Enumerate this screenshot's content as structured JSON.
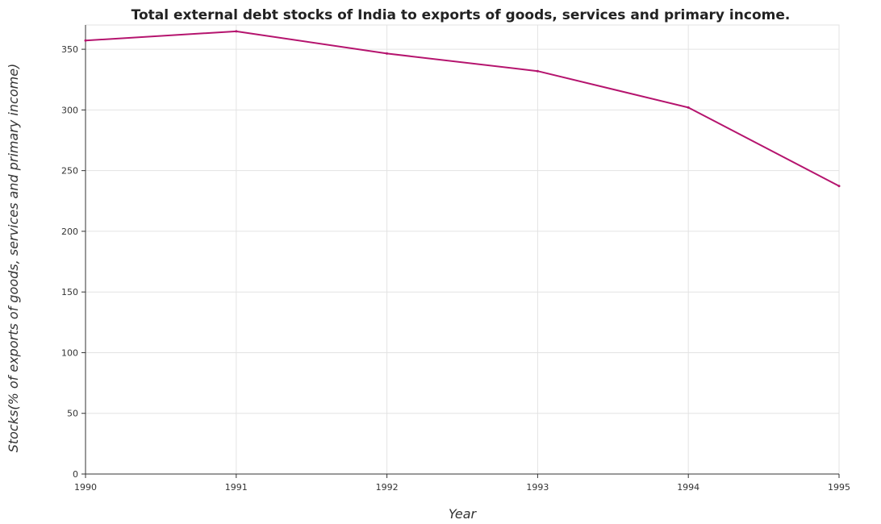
{
  "chart_data": {
    "type": "line",
    "title": "Total external debt stocks of India to exports of goods, services and primary income.",
    "xlabel": "Year",
    "ylabel": "Stocks(% of exports of goods, services and primary income)",
    "categories": [
      "1990",
      "1991",
      "1992",
      "1993",
      "1994",
      "1995"
    ],
    "series": [
      {
        "values": [
          357.2,
          364.8,
          346.5,
          332.0,
          302.0,
          237.3
        ],
        "color": "#b5146e"
      }
    ],
    "yticks": [
      0,
      50,
      100,
      150,
      200,
      250,
      300,
      350
    ],
    "ylim": [
      0,
      370
    ],
    "grid": true,
    "legend": "none"
  }
}
